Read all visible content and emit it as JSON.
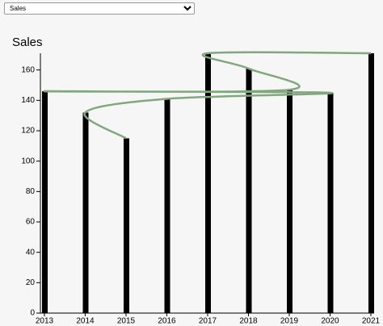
{
  "dropdown": {
    "selected": "Sales"
  },
  "chart_data": {
    "type": "bar",
    "title": "Sales",
    "x": [
      2013,
      2014,
      2015,
      2016,
      2017,
      2018,
      2019,
      2020,
      2021
    ],
    "values": [
      146,
      132,
      115,
      141,
      171,
      161,
      147,
      145,
      171
    ],
    "color": "#000000",
    "line": {
      "x": [
        2015,
        2014,
        2016,
        2020,
        2013,
        2019,
        2018,
        2017,
        2021
      ],
      "values": [
        115,
        132,
        141,
        145,
        146,
        147,
        161,
        171,
        171
      ],
      "color": "#82a77f"
    },
    "xlim": [
      2013,
      2021
    ],
    "xticks": [
      2013,
      2014,
      2015,
      2016,
      2017,
      2018,
      2019,
      2020,
      2021
    ],
    "ylim": [
      0,
      171
    ],
    "yticks": [
      0,
      20,
      40,
      60,
      80,
      100,
      120,
      140,
      160
    ]
  }
}
